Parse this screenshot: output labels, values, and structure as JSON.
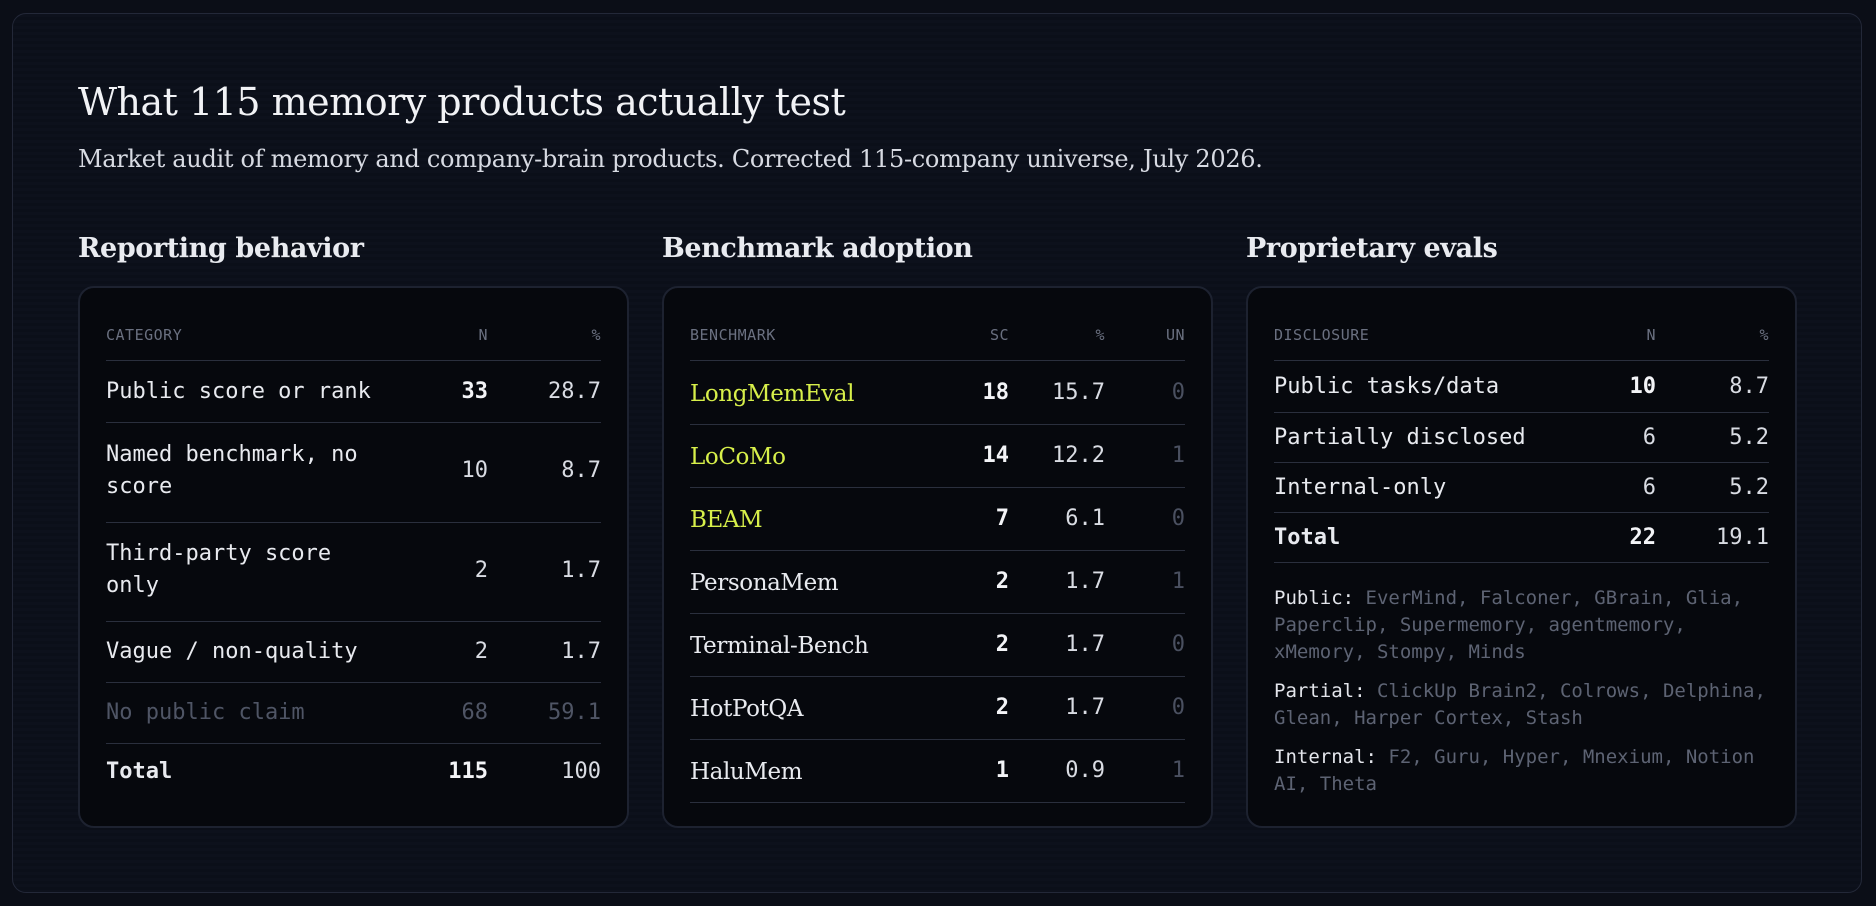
{
  "header": {
    "title": "What 115 memory products actually test",
    "subtitle": "Market audit of memory and company-brain products. Corrected 115-company universe, July 2026."
  },
  "colors": {
    "background": "#0b0e17",
    "card": "#06080d",
    "highlight_benchmark": "#d7ef4a",
    "muted": "#4f5565"
  },
  "reporting": {
    "title": "Reporting behavior",
    "headers": [
      "CATEGORY",
      "N",
      "%"
    ],
    "rows": [
      {
        "label": "Public score or rank",
        "n": "33",
        "pct": "28.7"
      },
      {
        "label": "Named benchmark, no score",
        "n": "10",
        "pct": "8.7"
      },
      {
        "label": "Third-party score only",
        "n": "2",
        "pct": "1.7"
      },
      {
        "label": "Vague / non-quality",
        "n": "2",
        "pct": "1.7"
      },
      {
        "label": "No public claim",
        "n": "68",
        "pct": "59.1"
      },
      {
        "label": "Total",
        "n": "115",
        "pct": "100"
      }
    ]
  },
  "benchmarks": {
    "title": "Benchmark adoption",
    "headers": [
      "BENCHMARK",
      "SC",
      "%",
      "UN"
    ],
    "rows": [
      {
        "label": "LongMemEval",
        "sc": "18",
        "pct": "15.7",
        "un": "0"
      },
      {
        "label": "LoCoMo",
        "sc": "14",
        "pct": "12.2",
        "un": "1"
      },
      {
        "label": "BEAM",
        "sc": "7",
        "pct": "6.1",
        "un": "0"
      },
      {
        "label": "PersonaMem",
        "sc": "2",
        "pct": "1.7",
        "un": "1"
      },
      {
        "label": "Terminal-Bench",
        "sc": "2",
        "pct": "1.7",
        "un": "0"
      },
      {
        "label": "HotPotQA",
        "sc": "2",
        "pct": "1.7",
        "un": "0"
      },
      {
        "label": "HaluMem",
        "sc": "1",
        "pct": "0.9",
        "un": "1"
      }
    ]
  },
  "proprietary": {
    "title": "Proprietary evals",
    "headers": [
      "DISCLOSURE",
      "N",
      "%"
    ],
    "rows": [
      {
        "label": "Public tasks/data",
        "n": "10",
        "pct": "8.7"
      },
      {
        "label": "Partially disclosed",
        "n": "6",
        "pct": "5.2"
      },
      {
        "label": "Internal-only",
        "n": "6",
        "pct": "5.2"
      },
      {
        "label": "Total",
        "n": "22",
        "pct": "19.1"
      }
    ],
    "notes": [
      {
        "key": "Public:",
        "text": "EverMind, Falconer, GBrain, Glia, Paperclip, Supermemory, agentmemory, xMemory, Stompy, Minds"
      },
      {
        "key": "Partial:",
        "text": "ClickUp Brain2, Colrows, Delphina, Glean, Harper Cortex, Stash"
      },
      {
        "key": "Internal:",
        "text": "F2, Guru, Hyper, Mnexium, Notion AI, Theta"
      }
    ]
  }
}
